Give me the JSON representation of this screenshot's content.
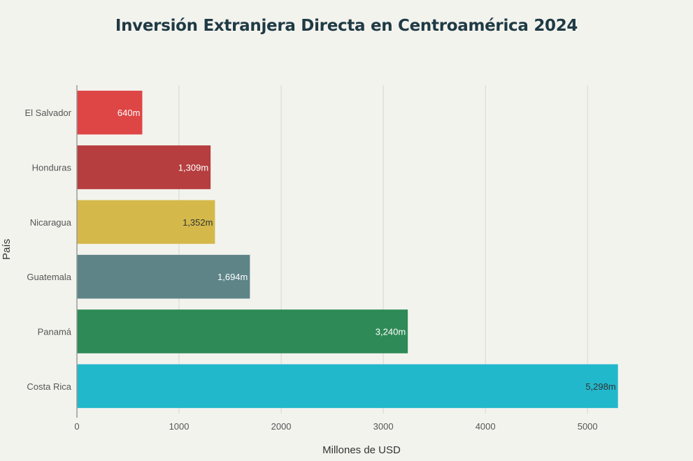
{
  "chart_data": {
    "type": "bar",
    "orientation": "horizontal",
    "title": "Inversión Extranjera Directa en Centroamérica 2024",
    "xlabel": "Millones de USD",
    "ylabel": "País",
    "xlim": [
      0,
      5300
    ],
    "xticks": [
      0,
      1000,
      2000,
      3000,
      4000,
      5000
    ],
    "grid": true,
    "categories": [
      "El Salvador",
      "Honduras",
      "Nicaragua",
      "Guatemala",
      "Panamá",
      "Costa Rica"
    ],
    "values": [
      640,
      1309,
      1352,
      1694,
      3240,
      5298
    ],
    "labels": [
      "640m",
      "1,309m",
      "1,352m",
      "1,694m",
      "3,240m",
      "5,298m"
    ],
    "colors": [
      "#de4545",
      "#b63e3e",
      "#d4b94a",
      "#5e8488",
      "#2e8a56",
      "#22b8cc"
    ],
    "label_colors": [
      "#ffffff",
      "#ffffff",
      "#333333",
      "#ffffff",
      "#ffffff",
      "#333333"
    ]
  }
}
